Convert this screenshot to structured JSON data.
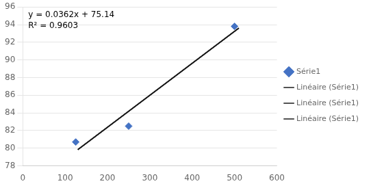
{
  "chart_data": {
    "type": "scatter",
    "series": [
      {
        "name": "Série1",
        "type": "scatter",
        "color": "#4472C4",
        "marker": "diamond",
        "x": [
          125,
          250,
          500
        ],
        "values": [
          80.7,
          82.5,
          93.8
        ]
      },
      {
        "name": "Linéaire (Série1)",
        "type": "line",
        "color": "#1a1a1a",
        "line_style": "solid",
        "x": [
          130,
          510
        ],
        "values": [
          79.846,
          93.602
        ]
      },
      {
        "name": "Linéaire (Série1)",
        "type": "line",
        "color": "#1a1a1a",
        "line_style": "solid",
        "x": [
          130,
          510
        ],
        "values": [
          79.846,
          93.602
        ]
      },
      {
        "name": "Linéaire (Série1)",
        "type": "line",
        "color": "#1a1a1a",
        "line_style": "solid",
        "x": [
          130,
          510
        ],
        "values": [
          79.846,
          93.602
        ]
      }
    ],
    "annotations": [
      "y = 0.0362x + 75.14",
      "R² = 0.9603"
    ],
    "xlim": [
      0,
      600
    ],
    "xticks": [
      0,
      100,
      200,
      300,
      400,
      500,
      600
    ],
    "ylim": [
      78,
      96
    ],
    "yticks": [
      78,
      80,
      82,
      84,
      86,
      88,
      90,
      92,
      94,
      96
    ],
    "grid": "y",
    "legend": "right"
  }
}
